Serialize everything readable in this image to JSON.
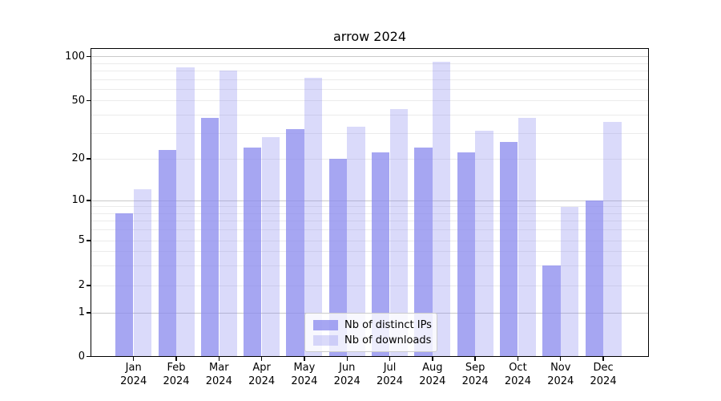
{
  "chart_data": {
    "type": "bar",
    "title": "arrow 2024",
    "categories": [
      "Jan",
      "Feb",
      "Mar",
      "Apr",
      "May",
      "Jun",
      "Jul",
      "Aug",
      "Sep",
      "Oct",
      "Nov",
      "Dec"
    ],
    "year_label": "2024",
    "series": [
      {
        "name": "Nb of distinct IPs",
        "values": [
          8,
          23,
          38,
          24,
          32,
          20,
          22,
          24,
          22,
          26,
          3,
          10
        ],
        "color": "#8888ee",
        "alpha": 0.75
      },
      {
        "name": "Nb of downloads",
        "values": [
          12,
          85,
          80,
          28,
          72,
          33,
          44,
          92,
          31,
          38,
          9,
          36
        ],
        "color": "#8888ee",
        "alpha": 0.31
      }
    ],
    "yscale": "symlog",
    "y_ticks": [
      0,
      1,
      2,
      5,
      10,
      20,
      50,
      100
    ],
    "ylim": [
      0,
      115
    ],
    "grid": "both",
    "legend_position": "lower center"
  }
}
